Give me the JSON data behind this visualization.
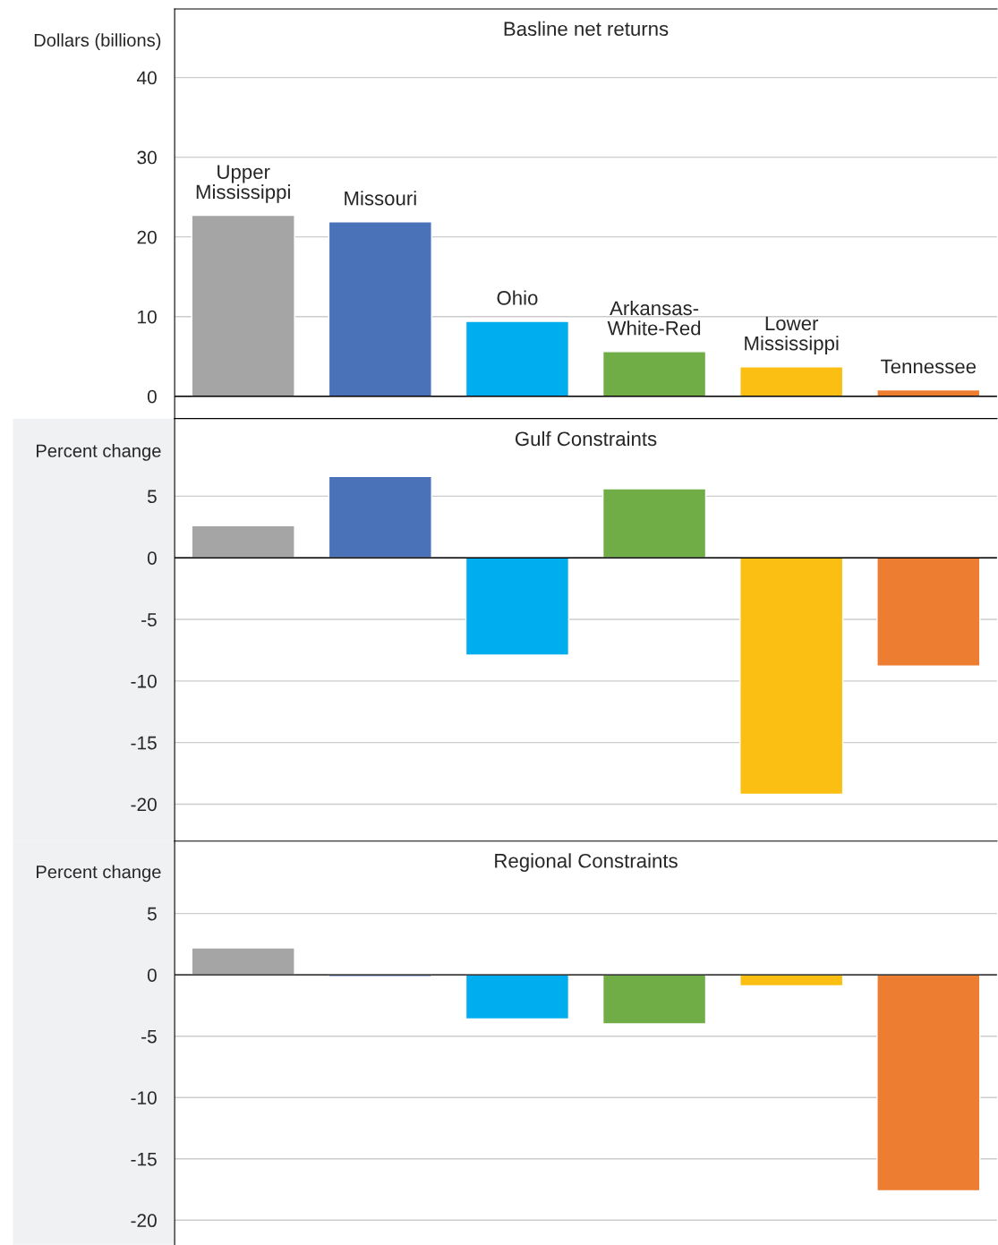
{
  "chart_data": [
    {
      "type": "bar",
      "title": "Basline net returns",
      "ylabel": "Dollars (billions)",
      "categories": [
        "Upper\nMississippi",
        "Missouri",
        "Ohio",
        "Arkansas-\nWhite-Red",
        "Lower\nMississippi",
        "Tennessee"
      ],
      "values": [
        22.7,
        21.9,
        9.4,
        5.6,
        3.7,
        0.8
      ],
      "colors": [
        "#a5a5a5",
        "#4a72b8",
        "#00adef",
        "#70ad47",
        "#fbbf14",
        "#ed7d31"
      ],
      "ylim": [
        -2.8,
        48.6
      ],
      "yticks": [
        0,
        10,
        20,
        30,
        40
      ],
      "grid": "y",
      "ref_lines": [
        {
          "axis": "y",
          "value": 0,
          "color": "#000000"
        }
      ]
    },
    {
      "type": "bar",
      "title": "Gulf Constraints",
      "ylabel": "Percent change",
      "categories": [
        null,
        null,
        null,
        null,
        null,
        null
      ],
      "values": [
        2.6,
        6.6,
        -7.9,
        5.6,
        -19.2,
        -8.8
      ],
      "colors": [
        "#a5a5a5",
        "#4a72b8",
        "#00adef",
        "#70ad47",
        "#fbbf14",
        "#ed7d31"
      ],
      "ylim": [
        -23.0,
        11.3
      ],
      "yticks": [
        -20,
        -15,
        -10,
        -5,
        0,
        5
      ],
      "grid": "y",
      "tick_labels": "y",
      "ref_lines": [
        {
          "axis": "y",
          "value": 0,
          "color": "#000000"
        }
      ]
    },
    {
      "type": "bar",
      "title": "Regional Constraints",
      "ylabel": "Percent change",
      "categories": [
        null,
        null,
        null,
        null,
        null,
        null
      ],
      "values": [
        2.2,
        -0.15,
        -3.6,
        -4.0,
        -0.9,
        -17.6
      ],
      "colors": [
        "#a5a5a5",
        "#4a72b8",
        "#00adef",
        "#70ad47",
        "#fbbf14",
        "#ed7d31"
      ],
      "ylim": [
        -22.0,
        10.9
      ],
      "yticks": [
        -20,
        -15,
        -10,
        -5,
        0,
        5
      ],
      "grid": "y",
      "tick_labels": "y",
      "ref_lines": [
        {
          "axis": "y",
          "value": 0,
          "color": "#000000"
        }
      ]
    }
  ]
}
